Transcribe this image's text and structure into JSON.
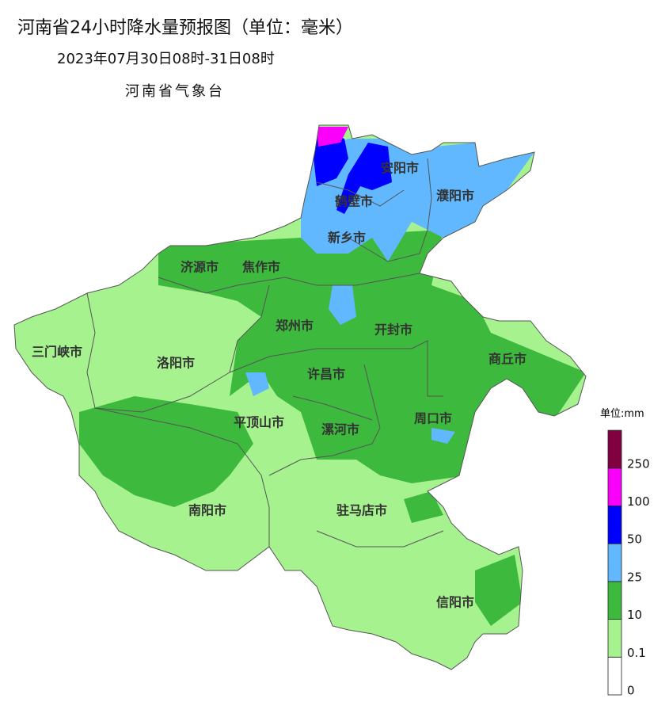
{
  "header": {
    "title": "河南省24小时降水量预报图（单位：毫米）",
    "period": "2023年07月30日08时-31日08时",
    "issuer": "河南省气象台"
  },
  "map": {
    "cities": [
      "安阳市",
      "濮阳市",
      "鹤壁市",
      "新乡市",
      "济源市",
      "焦作市",
      "郑州市",
      "开封市",
      "三门峡市",
      "洛阳市",
      "商丘市",
      "许昌市",
      "平顶山市",
      "漯河市",
      "周口市",
      "南阳市",
      "驻马店市",
      "信阳市"
    ]
  },
  "legend": {
    "unit": "单位:mm",
    "ticks": [
      "0",
      "0.1",
      "10",
      "25",
      "50",
      "100",
      "250"
    ],
    "colors": [
      "#ffffff",
      "#a6f28f",
      "#3dba3d",
      "#61b8ff",
      "#0000fe",
      "#fa00fa",
      "#800040"
    ]
  }
}
